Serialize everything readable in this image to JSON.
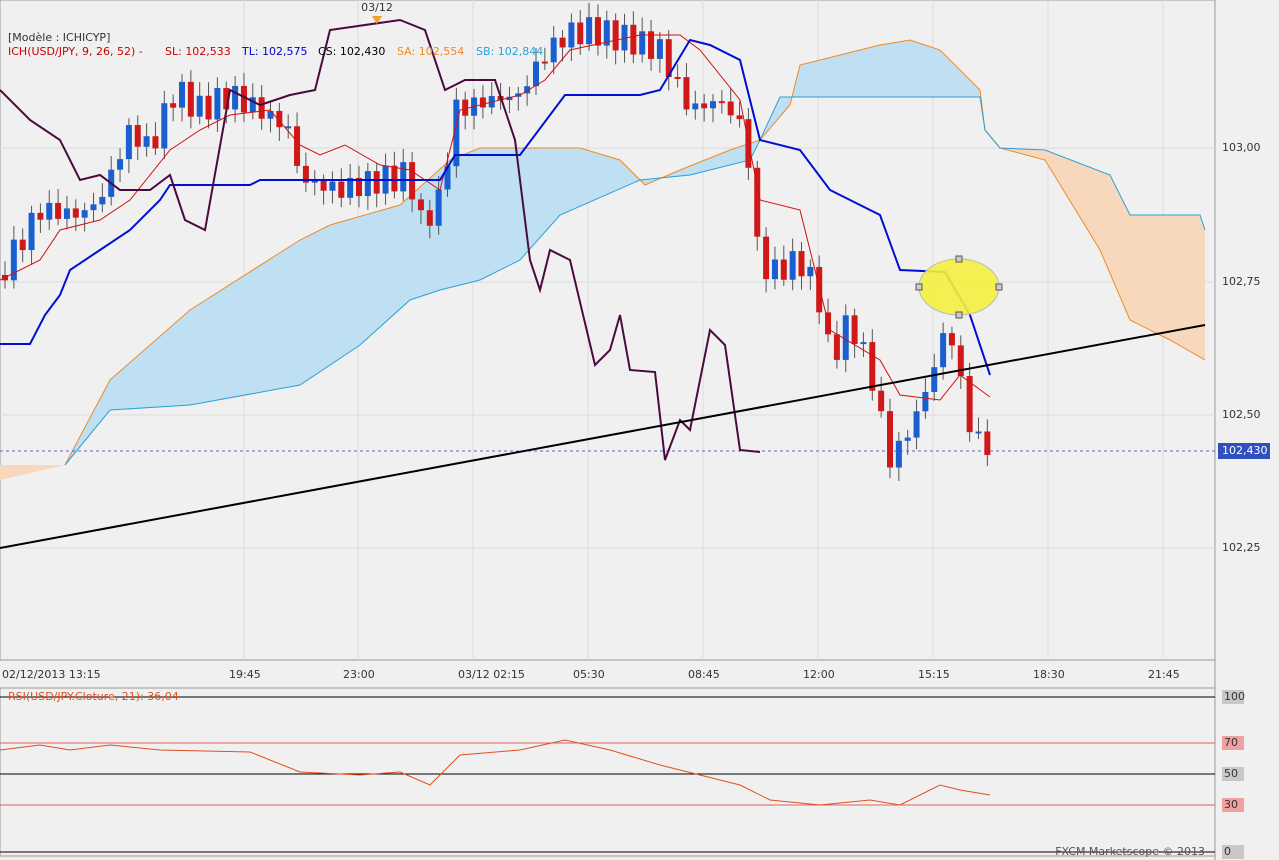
{
  "header": {
    "model": "[Modèle : ICHICYP]",
    "indicator": "ICH(USD/JPY, 9, 26, 52) -",
    "sl": "SL: 102,533",
    "tl": "TL: 102,575",
    "cs": "CS: 102,430",
    "sa": "SA: 102,554",
    "sb": "SB: 102,844"
  },
  "date_marker": "03/12",
  "price_axis": [
    "103,00",
    "102,75",
    "102,50",
    "102,25"
  ],
  "current_price": "102,430",
  "time_axis": [
    "02/12/2013 13:15",
    "19:45",
    "23:00",
    "03/12 02:15",
    "05:30",
    "08:45",
    "12:00",
    "15:15",
    "18:30",
    "21:45"
  ],
  "rsi": {
    "label": "RSI(USD/JPY.Cloture, 21): 36,04",
    "levels": [
      "100",
      "70",
      "50",
      "30",
      "0"
    ]
  },
  "watermark": "FXCM Marketscope © 2013"
}
